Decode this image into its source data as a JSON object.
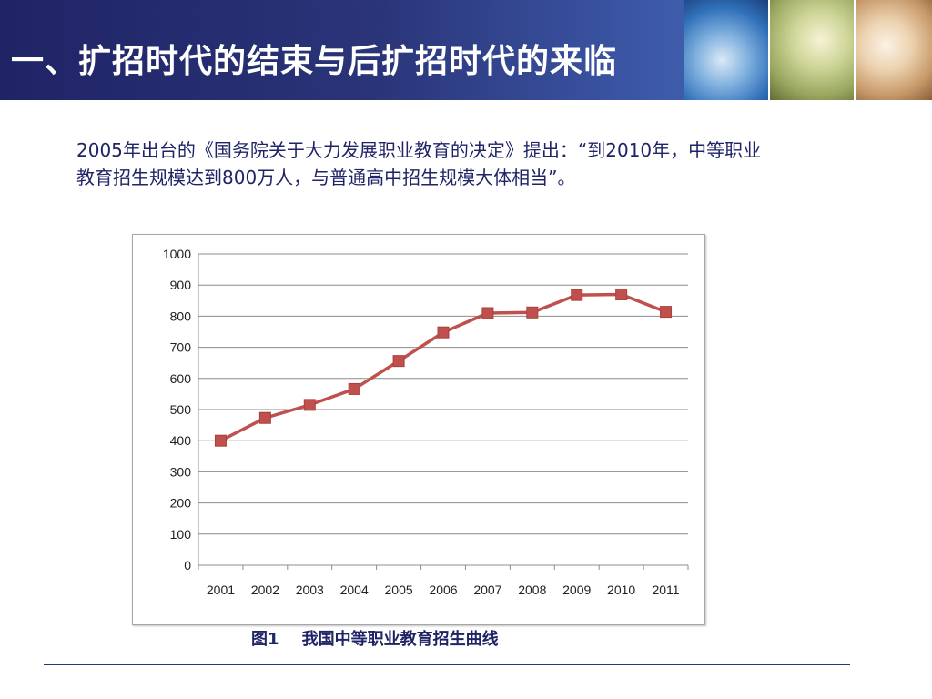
{
  "slide": {
    "title": "一、扩招时代的结束与后扩招时代的来临",
    "intro_text": "2005年出台的《国务院关于大力发展职业教育的决定》提出：“到2010年，中等职业教育招生规模达到800万人，与普通高中招生规模大体相当”。",
    "caption": "图1    我国中等职业教育招生曲线"
  },
  "theme": {
    "header_dark": "#1f2466",
    "text_color": "#1f2466",
    "series_color": "#c0504d",
    "grid_color": "#8c8c8c"
  },
  "chart_data": {
    "type": "line",
    "title": "",
    "xlabel": "",
    "ylabel": "",
    "categories": [
      "2001",
      "2002",
      "2003",
      "2004",
      "2005",
      "2006",
      "2007",
      "2008",
      "2009",
      "2010",
      "2011"
    ],
    "series": [
      {
        "values": [
          400,
          473,
          515,
          566,
          656,
          748,
          810,
          812,
          868,
          870,
          814
        ]
      }
    ],
    "ylim": [
      0,
      1000
    ],
    "yticks": [
      "0",
      "100",
      "200",
      "300",
      "400",
      "500",
      "600",
      "700",
      "800",
      "900",
      "1000"
    ],
    "grid": true,
    "legend": "none",
    "marker": "square"
  }
}
